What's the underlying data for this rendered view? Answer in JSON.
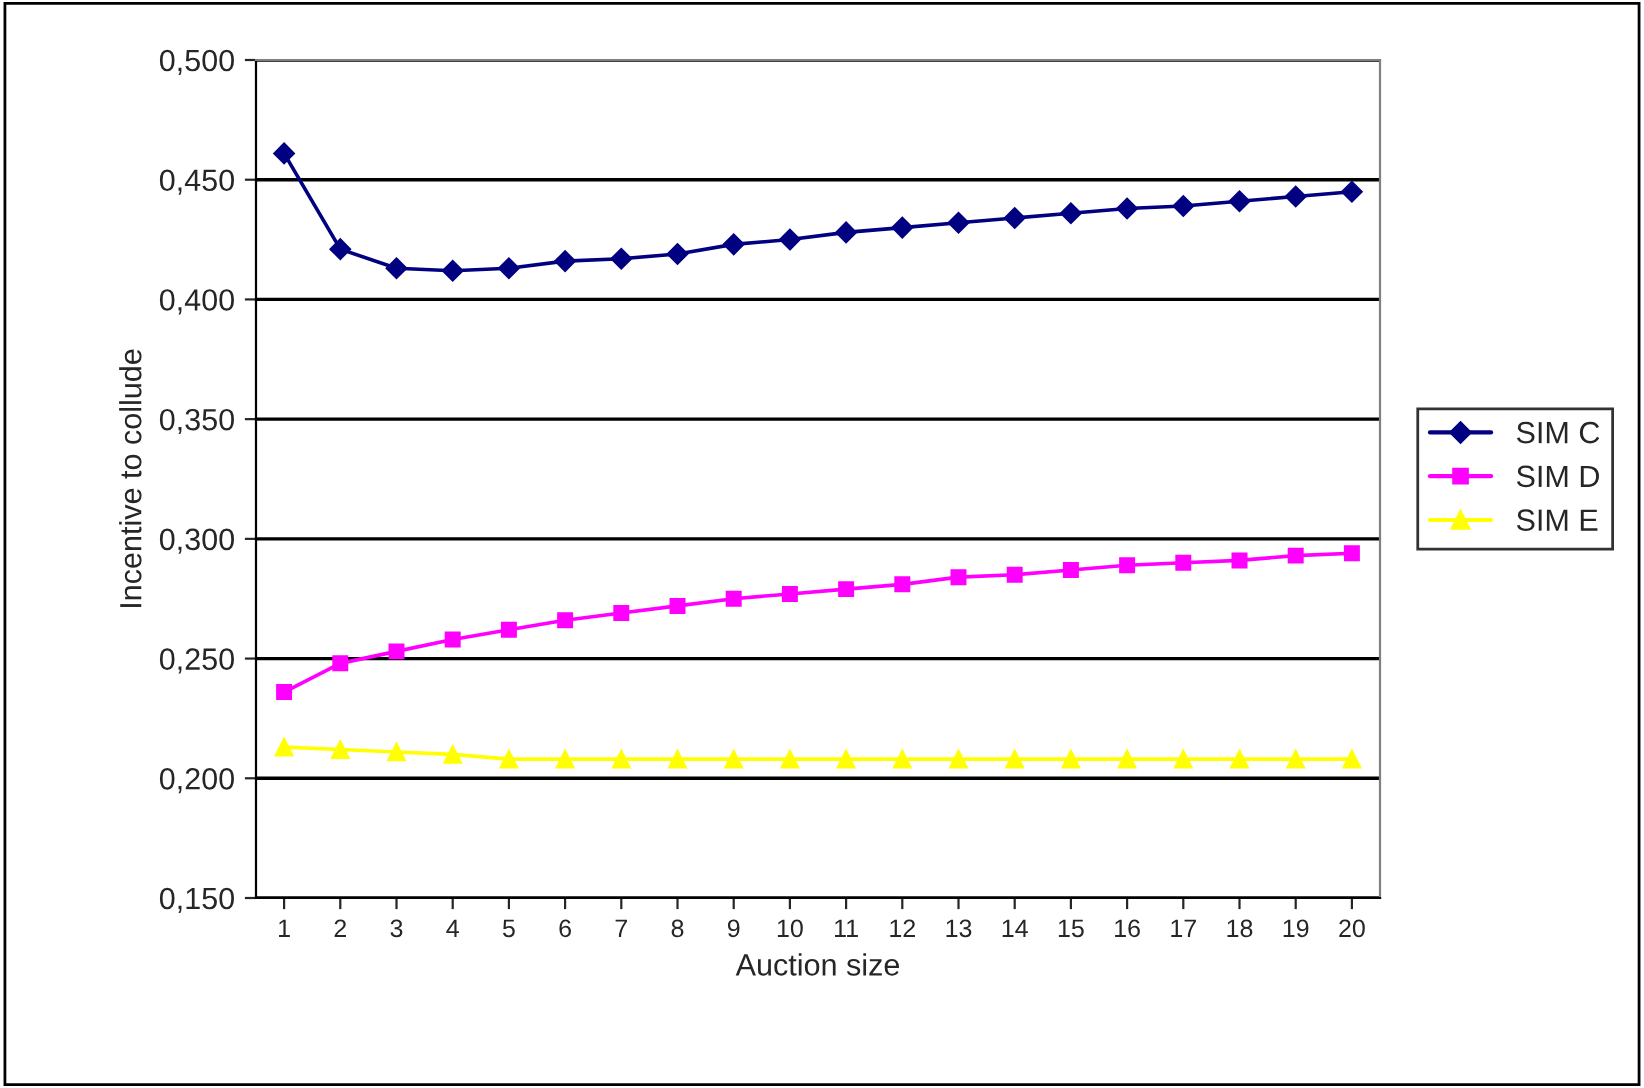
{
  "chart_data": {
    "type": "line",
    "xlabel": "Auction size",
    "ylabel": "Incentive to collude",
    "categories": [
      "1",
      "2",
      "3",
      "4",
      "5",
      "6",
      "7",
      "8",
      "9",
      "10",
      "11",
      "12",
      "13",
      "14",
      "15",
      "16",
      "17",
      "18",
      "19",
      "20"
    ],
    "series": [
      {
        "name": "SIM C",
        "color": "#000080",
        "marker": "diamond",
        "values": [
          0.461,
          0.421,
          0.413,
          0.412,
          0.413,
          0.416,
          0.417,
          0.419,
          0.423,
          0.425,
          0.428,
          0.43,
          0.432,
          0.434,
          0.436,
          0.438,
          0.439,
          0.441,
          0.443,
          0.445
        ]
      },
      {
        "name": "SIM D",
        "color": "#ff00ff",
        "marker": "square",
        "values": [
          0.236,
          0.248,
          0.253,
          0.258,
          0.262,
          0.266,
          0.269,
          0.272,
          0.275,
          0.277,
          0.279,
          0.281,
          0.284,
          0.285,
          0.287,
          0.289,
          0.29,
          0.291,
          0.293,
          0.294
        ]
      },
      {
        "name": "SIM E",
        "color": "#ffff00",
        "marker": "triangle",
        "values": [
          0.213,
          0.212,
          0.211,
          0.21,
          0.208,
          0.208,
          0.208,
          0.208,
          0.208,
          0.208,
          0.208,
          0.208,
          0.208,
          0.208,
          0.208,
          0.208,
          0.208,
          0.208,
          0.208,
          0.208
        ]
      }
    ],
    "ylim": [
      0.15,
      0.5
    ],
    "yticks": [
      {
        "value": 0.15,
        "label": "0,150"
      },
      {
        "value": 0.2,
        "label": "0,200"
      },
      {
        "value": 0.25,
        "label": "0,250"
      },
      {
        "value": 0.3,
        "label": "0,300"
      },
      {
        "value": 0.35,
        "label": "0,350"
      },
      {
        "value": 0.4,
        "label": "0,400"
      },
      {
        "value": 0.45,
        "label": "0,450"
      },
      {
        "value": 0.5,
        "label": "0,500"
      }
    ],
    "grid": "y",
    "legend": "right",
    "line_style": "solid"
  }
}
